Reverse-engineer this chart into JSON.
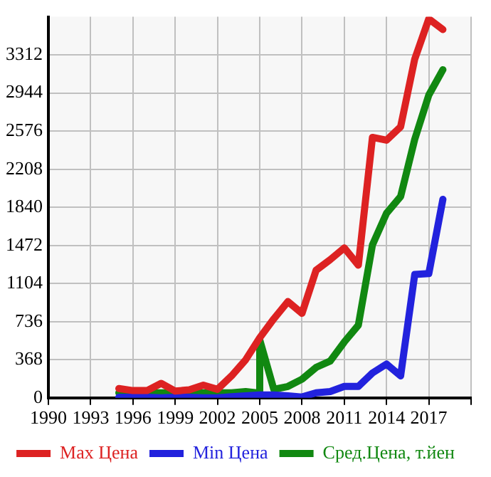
{
  "chart_data": {
    "type": "line",
    "xlim": [
      1990,
      2020
    ],
    "xticks": [
      1990,
      1993,
      1996,
      1999,
      2002,
      2005,
      2008,
      2011,
      2014,
      2017,
      {
        "value": 2020,
        "label": null
      }
    ],
    "ylim": [
      0,
      3680
    ],
    "yticks": [
      0,
      368,
      736,
      1104,
      1472,
      1840,
      2208,
      2576,
      2944,
      3312
    ],
    "grid": true,
    "legend": "bottom",
    "marker": "none",
    "line_style": "solid",
    "series": [
      {
        "name": "Max Цена",
        "color": "#dd2222",
        "x": [
          1995,
          1996,
          1997,
          1998,
          1999,
          2000,
          2001,
          2002,
          2003,
          2004,
          2005,
          2006,
          2007,
          2008,
          2009,
          2010,
          2011,
          2012,
          2013,
          2014,
          2015,
          2016,
          2017,
          2018
        ],
        "values": [
          90,
          70,
          70,
          140,
          65,
          78,
          122,
          82,
          212,
          367,
          580,
          763,
          930,
          816,
          1232,
          1334,
          1448,
          1281,
          2516,
          2488,
          2618,
          3271,
          3660,
          3557
        ]
      },
      {
        "name": "Min Цена",
        "color": "#2222dd",
        "x": [
          1995,
          1996,
          1997,
          1998,
          1999,
          2000,
          2001,
          2002,
          2003,
          2004,
          2005,
          2006,
          2007,
          2008,
          2009,
          2010,
          2011,
          2012,
          2013,
          2014,
          2015,
          2016,
          2017,
          2018
        ],
        "values": [
          5,
          5,
          5,
          0,
          5,
          5,
          0,
          0,
          10,
          20,
          28,
          28,
          20,
          8,
          49,
          61,
          110,
          110,
          240,
          326,
          212,
          1191,
          1200,
          1917
        ]
      },
      {
        "name": "Сред.Цена, т.йен",
        "color": "#118811",
        "x": [
          1995,
          1996,
          1997,
          1998,
          1999,
          2000,
          2001,
          2002,
          2003,
          2004,
          2005,
          2005,
          2006,
          2007,
          2008,
          2009,
          2010,
          2011,
          2012,
          2013,
          2014,
          2015,
          2016,
          2017,
          2018
        ],
        "values": [
          49,
          49,
          49,
          49,
          49,
          49,
          49,
          49,
          49,
          61,
          45,
          560,
          82,
          110,
          180,
          294,
          355,
          539,
          702,
          1477,
          1783,
          1945,
          2496,
          2924,
          3169
        ]
      }
    ]
  }
}
